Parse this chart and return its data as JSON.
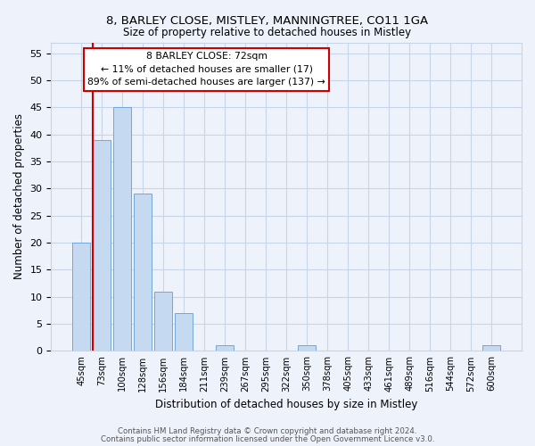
{
  "title": "8, BARLEY CLOSE, MISTLEY, MANNINGTREE, CO11 1GA",
  "subtitle": "Size of property relative to detached houses in Mistley",
  "xlabel": "Distribution of detached houses by size in Mistley",
  "ylabel": "Number of detached properties",
  "bar_labels": [
    "45sqm",
    "73sqm",
    "100sqm",
    "128sqm",
    "156sqm",
    "184sqm",
    "211sqm",
    "239sqm",
    "267sqm",
    "295sqm",
    "322sqm",
    "350sqm",
    "378sqm",
    "405sqm",
    "433sqm",
    "461sqm",
    "489sqm",
    "516sqm",
    "544sqm",
    "572sqm",
    "600sqm"
  ],
  "bar_values": [
    20,
    39,
    45,
    29,
    11,
    7,
    0,
    1,
    0,
    0,
    0,
    1,
    0,
    0,
    0,
    0,
    0,
    0,
    0,
    0,
    1
  ],
  "bar_color": "#c5d9f1",
  "bar_edge_color": "#6fa8dc",
  "vline_x_index": 1,
  "vline_color": "#cc0000",
  "annotation_text": "8 BARLEY CLOSE: 72sqm\n← 11% of detached houses are smaller (17)\n89% of semi-detached houses are larger (137) →",
  "annotation_box_color": "#ffffff",
  "annotation_box_edge": "#cc0000",
  "ylim": [
    0,
    57
  ],
  "yticks": [
    0,
    5,
    10,
    15,
    20,
    25,
    30,
    35,
    40,
    45,
    50,
    55
  ],
  "footer_line1": "Contains HM Land Registry data © Crown copyright and database right 2024.",
  "footer_line2": "Contains public sector information licensed under the Open Government Licence v3.0.",
  "bg_color": "#eef2fb",
  "grid_color": "#c8d4e8"
}
